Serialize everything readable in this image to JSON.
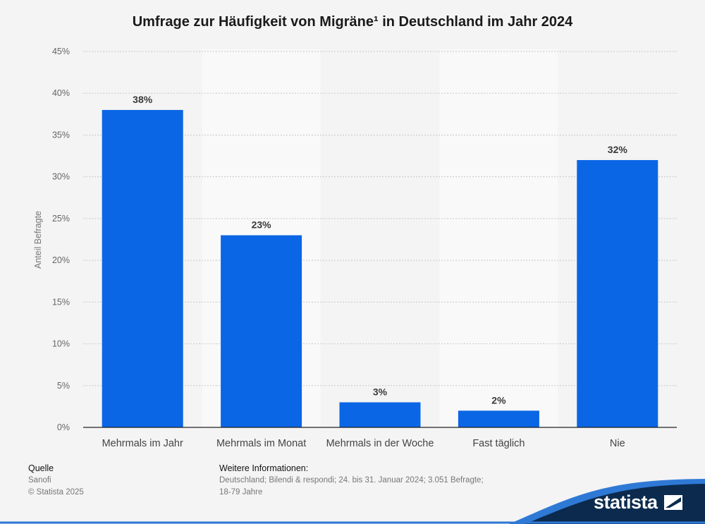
{
  "chart_data": {
    "type": "bar",
    "title": "Umfrage zur Häufigkeit von Migräne¹ in Deutschland im Jahr 2024",
    "categories": [
      "Mehrmals im Jahr",
      "Mehrmals im Monat",
      "Mehrmals in der Woche",
      "Fast täglich",
      "Nie"
    ],
    "values": [
      38,
      23,
      3,
      2,
      32
    ],
    "value_labels": [
      "38%",
      "23%",
      "3%",
      "2%",
      "32%"
    ],
    "ylabel": "Anteil Befragte",
    "xlabel": "",
    "ylim": [
      0,
      45
    ],
    "yticks": [
      0,
      5,
      10,
      15,
      20,
      25,
      30,
      35,
      40,
      45
    ],
    "ytick_labels": [
      "0%",
      "5%",
      "10%",
      "15%",
      "20%",
      "25%",
      "30%",
      "35%",
      "40%",
      "45%"
    ],
    "grid": true,
    "bar_color": "#0a66e4"
  },
  "footer": {
    "source_heading": "Quelle",
    "source_name": "Sanofi",
    "copyright": "© Statista 2025",
    "info_heading": "Weitere Informationen:",
    "info_line1": "Deutschland; Bilendi & respondi; 24. bis 31. Januar 2024; 3.051 Befragte;",
    "info_line2": "18-79 Jahre"
  },
  "brand": {
    "name": "statista",
    "logo_icon": "statista-flag-icon",
    "wave_color": "#0b2a4e",
    "accent_color": "#2f79d6"
  }
}
